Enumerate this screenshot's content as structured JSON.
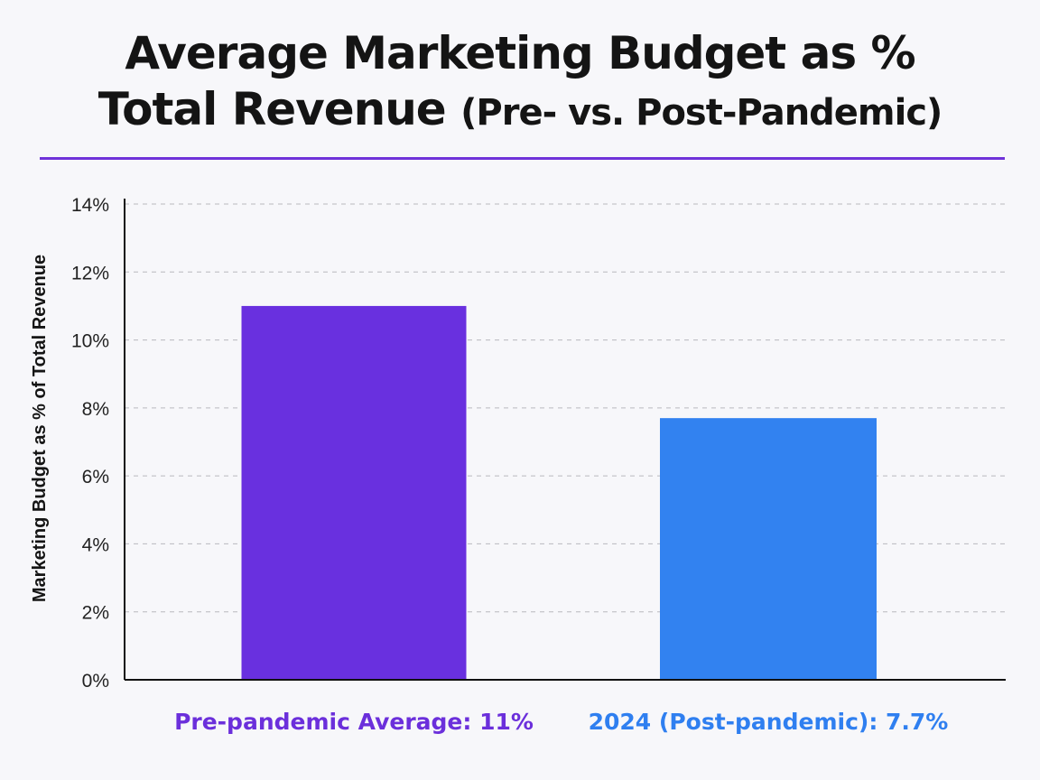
{
  "title": {
    "line1": "Average Marketing Budget as %",
    "line2_main": "Total Revenue",
    "line2_paren": "(Pre- vs. Post-Pandemic)"
  },
  "colors": {
    "accent": "#6f32d9",
    "pre_bar": "#6930df",
    "post_bar": "#3282f0",
    "grid": "#b8b8be",
    "axis": "#111111"
  },
  "chart_data": {
    "type": "bar",
    "title": "Average Marketing Budget as % Total Revenue (Pre- vs. Post-Pandemic)",
    "xlabel": "",
    "ylabel": "Marketing Budget as % of Total Revenue",
    "ylim": [
      0,
      14
    ],
    "yticks": [
      0,
      2,
      4,
      6,
      8,
      10,
      12,
      14
    ],
    "ytick_labels": [
      "0%",
      "2%",
      "4%",
      "6%",
      "8%",
      "10%",
      "12%",
      "14%"
    ],
    "grid": true,
    "categories": [
      "Pre-pandemic Average: 11%",
      "2024 (Post-pandemic): 7.7%"
    ],
    "values": [
      11,
      7.7
    ],
    "bar_colors": [
      "#6930df",
      "#3282f0"
    ],
    "label_colors": [
      "#6b2fdb",
      "#2f7ff0"
    ]
  }
}
